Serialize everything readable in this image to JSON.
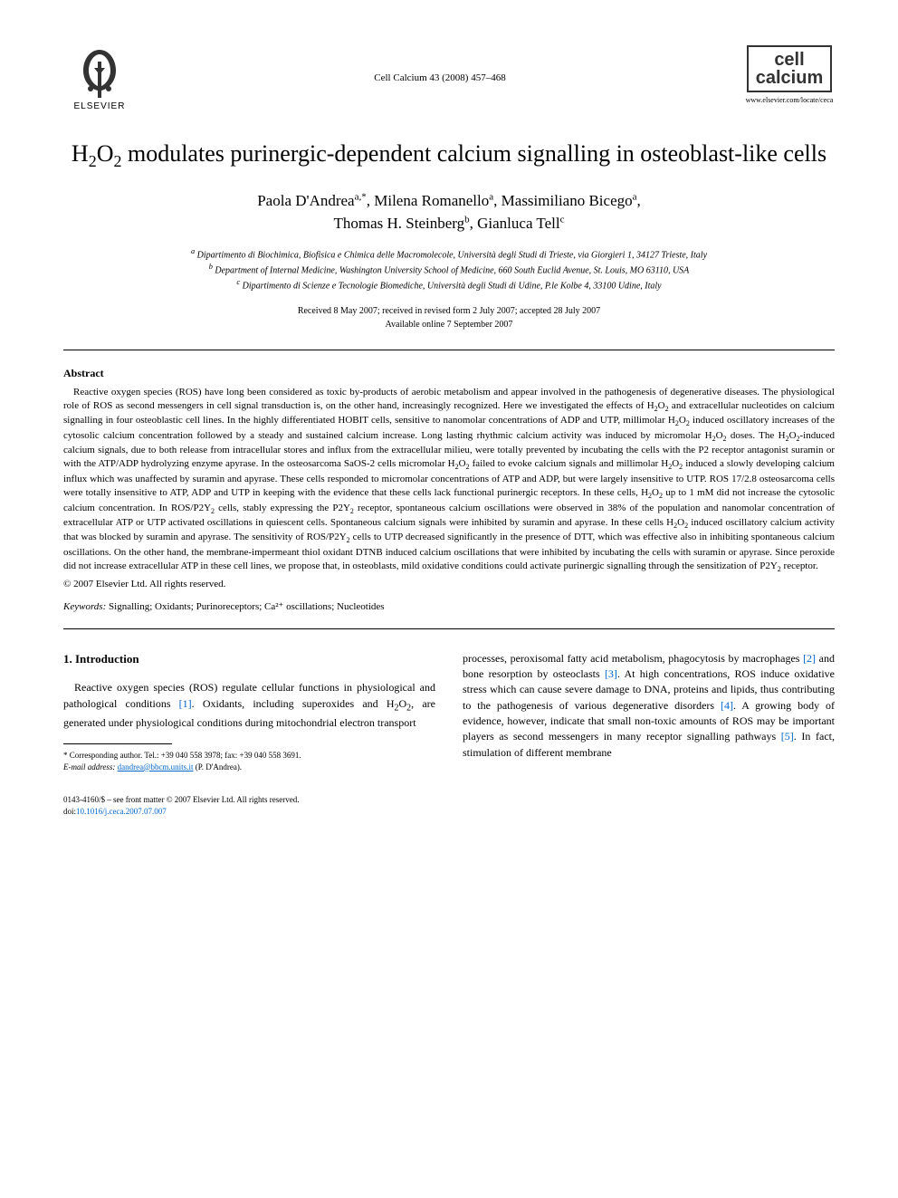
{
  "header": {
    "publisher": "ELSEVIER",
    "journal_ref": "Cell Calcium 43 (2008) 457–468",
    "journal_box_line1": "cell",
    "journal_box_line2": "calcium",
    "journal_url": "www.elsevier.com/locate/ceca"
  },
  "title": {
    "html": "H<sub>2</sub>O<sub>2</sub> modulates purinergic-dependent calcium signalling in osteoblast-like cells"
  },
  "authors": {
    "line1": "Paola D'Andrea",
    "sup1": "a,*",
    "line2": ", Milena Romanello",
    "sup2": "a",
    "line3": ", Massimiliano Bicego",
    "sup3": "a",
    "line4": ",",
    "line5": "Thomas H. Steinberg",
    "sup4": "b",
    "line6": ", Gianluca Tell",
    "sup5": "c"
  },
  "affiliations": {
    "a": "Dipartimento di Biochimica, Biofisica e Chimica delle Macromolecole, Università degli Studi di Trieste, via Giorgieri 1, 34127 Trieste, Italy",
    "b": "Department of Internal Medicine, Washington University School of Medicine, 660 South Euclid Avenue, St. Louis, MO 63110, USA",
    "c": "Dipartimento di Scienze e Tecnologie Biomediche, Università degli Studi di Udine, P.le Kolbe 4, 33100 Udine, Italy"
  },
  "dates": {
    "received": "Received 8 May 2007; received in revised form 2 July 2007; accepted 28 July 2007",
    "online": "Available online 7 September 2007"
  },
  "abstract": {
    "heading": "Abstract",
    "text_html": "Reactive oxygen species (ROS) have long been considered as toxic by-products of aerobic metabolism and appear involved in the pathogenesis of degenerative diseases. The physiological role of ROS as second messengers in cell signal transduction is, on the other hand, increasingly recognized. Here we investigated the effects of H<sub>2</sub>O<sub>2</sub> and extracellular nucleotides on calcium signalling in four osteoblastic cell lines. In the highly differentiated HOBIT cells, sensitive to nanomolar concentrations of ADP and UTP, millimolar H<sub>2</sub>O<sub>2</sub> induced oscillatory increases of the cytosolic calcium concentration followed by a steady and sustained calcium increase. Long lasting rhythmic calcium activity was induced by micromolar H<sub>2</sub>O<sub>2</sub> doses. The H<sub>2</sub>O<sub>2</sub>-induced calcium signals, due to both release from intracellular stores and influx from the extracellular milieu, were totally prevented by incubating the cells with the P2 receptor antagonist suramin or with the ATP/ADP hydrolyzing enzyme apyrase. In the osteosarcoma SaOS-2 cells micromolar H<sub>2</sub>O<sub>2</sub> failed to evoke calcium signals and millimolar H<sub>2</sub>O<sub>2</sub> induced a slowly developing calcium influx which was unaffected by suramin and apyrase. These cells responded to micromolar concentrations of ATP and ADP, but were largely insensitive to UTP. ROS 17/2.8 osteosarcoma cells were totally insensitive to ATP, ADP and UTP in keeping with the evidence that these cells lack functional purinergic receptors. In these cells, H<sub>2</sub>O<sub>2</sub> up to 1 mM did not increase the cytosolic calcium concentration. In ROS/P2Y<sub>2</sub> cells, stably expressing the P2Y<sub>2</sub> receptor, spontaneous calcium oscillations were observed in 38% of the population and nanomolar concentration of extracellular ATP or UTP activated oscillations in quiescent cells. Spontaneous calcium signals were inhibited by suramin and apyrase. In these cells H<sub>2</sub>O<sub>2</sub> induced oscillatory calcium activity that was blocked by suramin and apyrase. The sensitivity of ROS/P2Y<sub>2</sub> cells to UTP decreased significantly in the presence of DTT, which was effective also in inhibiting spontaneous calcium oscillations. On the other hand, the membrane-impermeant thiol oxidant DTNB induced calcium oscillations that were inhibited by incubating the cells with suramin or apyrase. Since peroxide did not increase extracellular ATP in these cell lines, we propose that, in osteoblasts, mild oxidative conditions could activate purinergic signalling through the sensitization of P2Y<sub>2</sub> receptor.",
    "copyright": "© 2007 Elsevier Ltd. All rights reserved."
  },
  "keywords": {
    "label": "Keywords:",
    "text": "Signalling; Oxidants; Purinoreceptors; Ca²⁺ oscillations; Nucleotides"
  },
  "body": {
    "section_heading": "1.  Introduction",
    "left_para_html": "Reactive oxygen species (ROS) regulate cellular functions in physiological and pathological conditions <span class=\"ref-link\">[1]</span>. Oxidants, including superoxides and H<sub>2</sub>O<sub>2</sub>, are generated under physiological conditions during mitochondrial electron transport",
    "right_para_html": "processes, peroxisomal fatty acid metabolism, phagocytosis by macrophages <span class=\"ref-link\">[2]</span> and bone resorption by osteoclasts <span class=\"ref-link\">[3]</span>. At high concentrations, ROS induce oxidative stress which can cause severe damage to DNA, proteins and lipids, thus contributing to the pathogenesis of various degenerative disorders <span class=\"ref-link\">[4]</span>. A growing body of evidence, however, indicate that small non-toxic amounts of ROS may be important players as second messengers in many receptor signalling pathways <span class=\"ref-link\">[5]</span>. In fact, stimulation of different membrane"
  },
  "footnote": {
    "corr": "* Corresponding author. Tel.: +39 040 558 3978; fax: +39 040 558 3691.",
    "email_label": "E-mail address:",
    "email": "dandrea@bbcm.units.it",
    "email_who": "(P. D'Andrea)."
  },
  "footer": {
    "issn": "0143-4160/$ – see front matter © 2007 Elsevier Ltd. All rights reserved.",
    "doi_label": "doi:",
    "doi": "10.1016/j.ceca.2007.07.007"
  },
  "colors": {
    "text": "#000000",
    "link": "#0066cc",
    "background": "#ffffff"
  },
  "typography": {
    "body_fontsize_pt": 11,
    "title_fontsize_pt": 26,
    "authors_fontsize_pt": 17,
    "abstract_fontsize_pt": 11,
    "footnote_fontsize_pt": 9
  }
}
